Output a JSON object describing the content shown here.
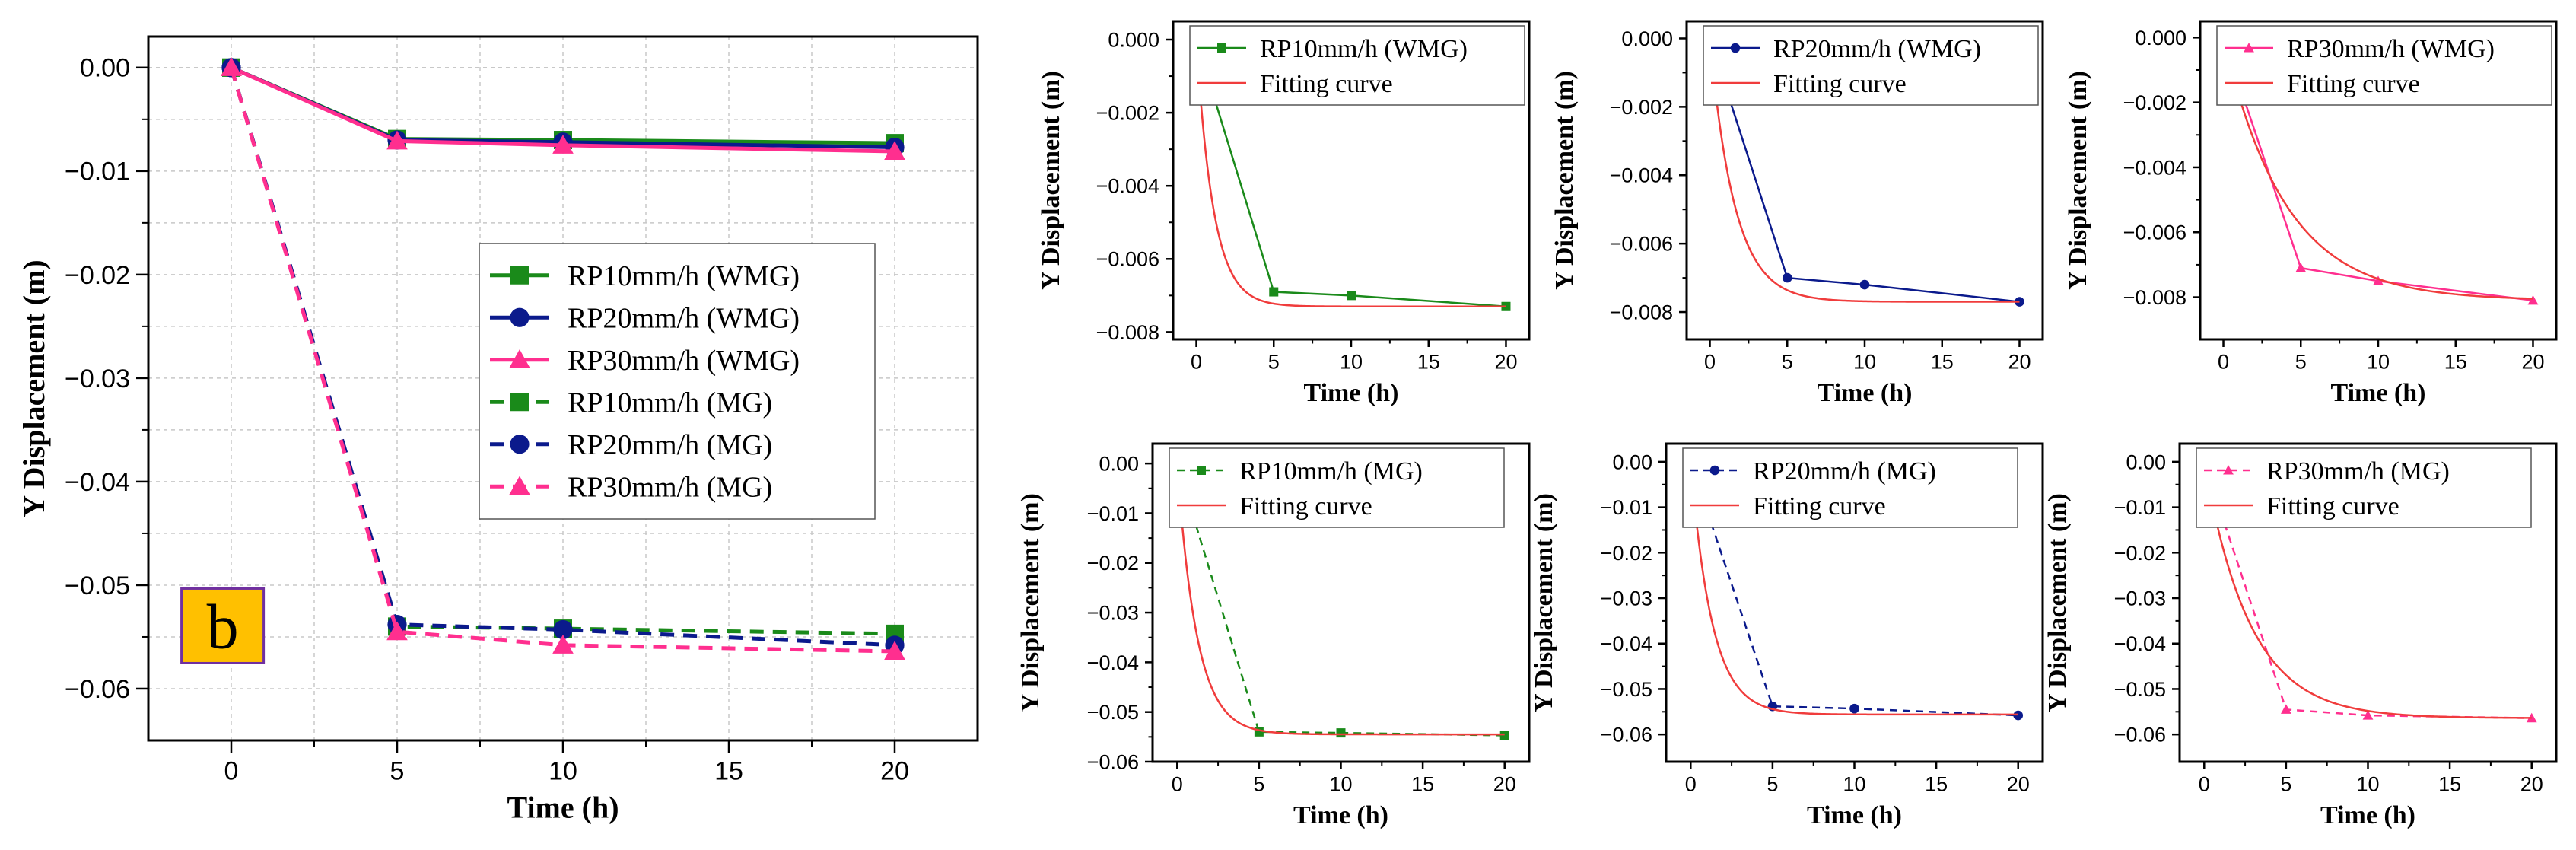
{
  "chart_data": [
    {
      "id": "main",
      "type": "line",
      "badge": "b",
      "xlabel": "Time (h)",
      "ylabel": "Y Displacement (m)",
      "x_ticks": [
        0,
        5,
        10,
        15,
        20
      ],
      "y_ticks": [
        0.0,
        -0.01,
        -0.02,
        -0.03,
        -0.04,
        -0.05,
        -0.06
      ],
      "y_tick_labels": [
        "0.00",
        "−0.01",
        "−0.02",
        "−0.03",
        "−0.04",
        "−0.05",
        "−0.06"
      ],
      "xlim": [
        -2.5,
        22.5
      ],
      "ylim": [
        -0.065,
        0.003
      ],
      "grid": true,
      "series": [
        {
          "name": "RP10mm/h (WMG)",
          "color": "#1a8a1a",
          "marker": "square",
          "dash": false,
          "x": [
            0,
            5,
            10,
            20
          ],
          "y": [
            0.0,
            -0.0069,
            -0.007,
            -0.0073
          ]
        },
        {
          "name": "RP20mm/h (WMG)",
          "color": "#0b1a8c",
          "marker": "circle",
          "dash": false,
          "x": [
            0,
            5,
            10,
            20
          ],
          "y": [
            0.0,
            -0.007,
            -0.0072,
            -0.0077
          ]
        },
        {
          "name": "RP30mm/h (WMG)",
          "color": "#ff2f8f",
          "marker": "triangle",
          "dash": false,
          "x": [
            0,
            5,
            10,
            20
          ],
          "y": [
            0.0,
            -0.0071,
            -0.0075,
            -0.0081
          ]
        },
        {
          "name": "RP10mm/h (MG)",
          "color": "#1a8a1a",
          "marker": "square",
          "dash": true,
          "x": [
            0,
            5,
            10,
            20
          ],
          "y": [
            0.0,
            -0.054,
            -0.0542,
            -0.0547
          ]
        },
        {
          "name": "RP20mm/h (MG)",
          "color": "#0b1a8c",
          "marker": "circle",
          "dash": true,
          "x": [
            0,
            5,
            10,
            20
          ],
          "y": [
            0.0,
            -0.0538,
            -0.0543,
            -0.0558
          ]
        },
        {
          "name": "RP30mm/h (MG)",
          "color": "#ff2f8f",
          "marker": "triangle",
          "dash": true,
          "x": [
            0,
            5,
            10,
            20
          ],
          "y": [
            0.0,
            -0.0545,
            -0.0558,
            -0.0564
          ]
        }
      ]
    },
    {
      "id": "wmg10",
      "type": "line",
      "xlabel": "Time (h)",
      "ylabel": "Y Displacement (m)",
      "x_ticks": [
        0,
        5,
        10,
        15,
        20
      ],
      "y_ticks": [
        0.0,
        -0.002,
        -0.004,
        -0.006,
        -0.008
      ],
      "y_tick_labels": [
        "0.000",
        "−0.002",
        "−0.004",
        "−0.006",
        "−0.008"
      ],
      "xlim": [
        -1.5,
        21.5
      ],
      "ylim": [
        -0.0082,
        0.0005
      ],
      "series": [
        {
          "name": "RP10mm/h (WMG)",
          "color": "#1a8a1a",
          "marker": "square",
          "dash": false,
          "x": [
            0,
            5,
            10,
            20
          ],
          "y": [
            0.0,
            -0.0069,
            -0.007,
            -0.0073
          ]
        },
        {
          "name": "Fitting curve",
          "color": "#f03c3c",
          "fit": {
            "a": -0.0073,
            "tau": 1.1
          }
        }
      ]
    },
    {
      "id": "wmg20",
      "type": "line",
      "xlabel": "Time (h)",
      "ylabel": "Y Displacement (m)",
      "x_ticks": [
        0,
        5,
        10,
        15,
        20
      ],
      "y_ticks": [
        0.0,
        -0.002,
        -0.004,
        -0.006,
        -0.008
      ],
      "y_tick_labels": [
        "0.000",
        "−0.002",
        "−0.004",
        "−0.006",
        "−0.008"
      ],
      "xlim": [
        -1.5,
        21.5
      ],
      "ylim": [
        -0.0088,
        0.0005
      ],
      "series": [
        {
          "name": "RP20mm/h (WMG)",
          "color": "#0b1a8c",
          "marker": "circle",
          "dash": false,
          "x": [
            0,
            5,
            10,
            20
          ],
          "y": [
            0.0,
            -0.007,
            -0.0072,
            -0.0077
          ]
        },
        {
          "name": "Fitting curve",
          "color": "#f03c3c",
          "fit": {
            "a": -0.0077,
            "tau": 1.6
          }
        }
      ]
    },
    {
      "id": "wmg30",
      "type": "line",
      "xlabel": "Time (h)",
      "ylabel": "Y Displacement (m)",
      "x_ticks": [
        0,
        5,
        10,
        15,
        20
      ],
      "y_ticks": [
        0.0,
        -0.002,
        -0.004,
        -0.006,
        -0.008
      ],
      "y_tick_labels": [
        "0.000",
        "−0.002",
        "−0.004",
        "−0.006",
        "−0.008"
      ],
      "xlim": [
        -1.5,
        21.5
      ],
      "ylim": [
        -0.0093,
        0.0005
      ],
      "series": [
        {
          "name": "RP30mm/h (WMG)",
          "color": "#ff2f8f",
          "marker": "triangle",
          "dash": false,
          "x": [
            0,
            5,
            10,
            20
          ],
          "y": [
            0.0,
            -0.0071,
            -0.0075,
            -0.0081
          ]
        },
        {
          "name": "Fitting curve",
          "color": "#f03c3c",
          "fit": {
            "a": -0.0081,
            "tau": 4.0
          }
        }
      ]
    },
    {
      "id": "mg10",
      "type": "line",
      "xlabel": "Time (h)",
      "ylabel": "Y Displacement (m)",
      "x_ticks": [
        0,
        5,
        10,
        15,
        20
      ],
      "y_ticks": [
        0.0,
        -0.01,
        -0.02,
        -0.03,
        -0.04,
        -0.05,
        -0.06
      ],
      "y_tick_labels": [
        "0.00",
        "−0.01",
        "−0.02",
        "−0.03",
        "−0.04",
        "−0.05",
        "−0.06"
      ],
      "xlim": [
        -1.5,
        21.5
      ],
      "ylim": [
        -0.06,
        0.004
      ],
      "series": [
        {
          "name": "RP10mm/h (MG)",
          "color": "#1a8a1a",
          "marker": "square",
          "dash": true,
          "x": [
            0,
            5,
            10,
            20
          ],
          "y": [
            0.0,
            -0.054,
            -0.0542,
            -0.0547
          ]
        },
        {
          "name": "Fitting curve",
          "color": "#f03c3c",
          "fit": {
            "a": -0.0545,
            "tau": 1.2
          }
        }
      ]
    },
    {
      "id": "mg20",
      "type": "line",
      "xlabel": "Time (h)",
      "ylabel": "Y Displacement (m)",
      "x_ticks": [
        0,
        5,
        10,
        15,
        20
      ],
      "y_ticks": [
        0.0,
        -0.01,
        -0.02,
        -0.03,
        -0.04,
        -0.05,
        -0.06
      ],
      "y_tick_labels": [
        "0.00",
        "−0.01",
        "−0.02",
        "−0.03",
        "−0.04",
        "−0.05",
        "−0.06"
      ],
      "xlim": [
        -1.5,
        21.5
      ],
      "ylim": [
        -0.066,
        0.004
      ],
      "series": [
        {
          "name": "RP20mm/h (MG)",
          "color": "#0b1a8c",
          "marker": "circle",
          "dash": true,
          "x": [
            0,
            5,
            10,
            20
          ],
          "y": [
            0.0,
            -0.0538,
            -0.0543,
            -0.0558
          ]
        },
        {
          "name": "Fitting curve",
          "color": "#f03c3c",
          "fit": {
            "a": -0.0556,
            "tau": 1.3
          }
        }
      ]
    },
    {
      "id": "mg30",
      "type": "line",
      "xlabel": "Time (h)",
      "ylabel": "Y Displacement (m)",
      "x_ticks": [
        0,
        5,
        10,
        15,
        20
      ],
      "y_ticks": [
        0.0,
        -0.01,
        -0.02,
        -0.03,
        -0.04,
        -0.05,
        -0.06
      ],
      "y_tick_labels": [
        "0.00",
        "−0.01",
        "−0.02",
        "−0.03",
        "−0.04",
        "−0.05",
        "−0.06"
      ],
      "xlim": [
        -1.5,
        21.5
      ],
      "ylim": [
        -0.066,
        0.004
      ],
      "series": [
        {
          "name": "RP30mm/h (MG)",
          "color": "#ff2f8f",
          "marker": "triangle",
          "dash": true,
          "x": [
            0,
            5,
            10,
            20
          ],
          "y": [
            0.0,
            -0.0545,
            -0.0558,
            -0.0564
          ]
        },
        {
          "name": "Fitting curve",
          "color": "#f03c3c",
          "fit": {
            "a": -0.0564,
            "tau": 2.8
          }
        }
      ]
    }
  ]
}
